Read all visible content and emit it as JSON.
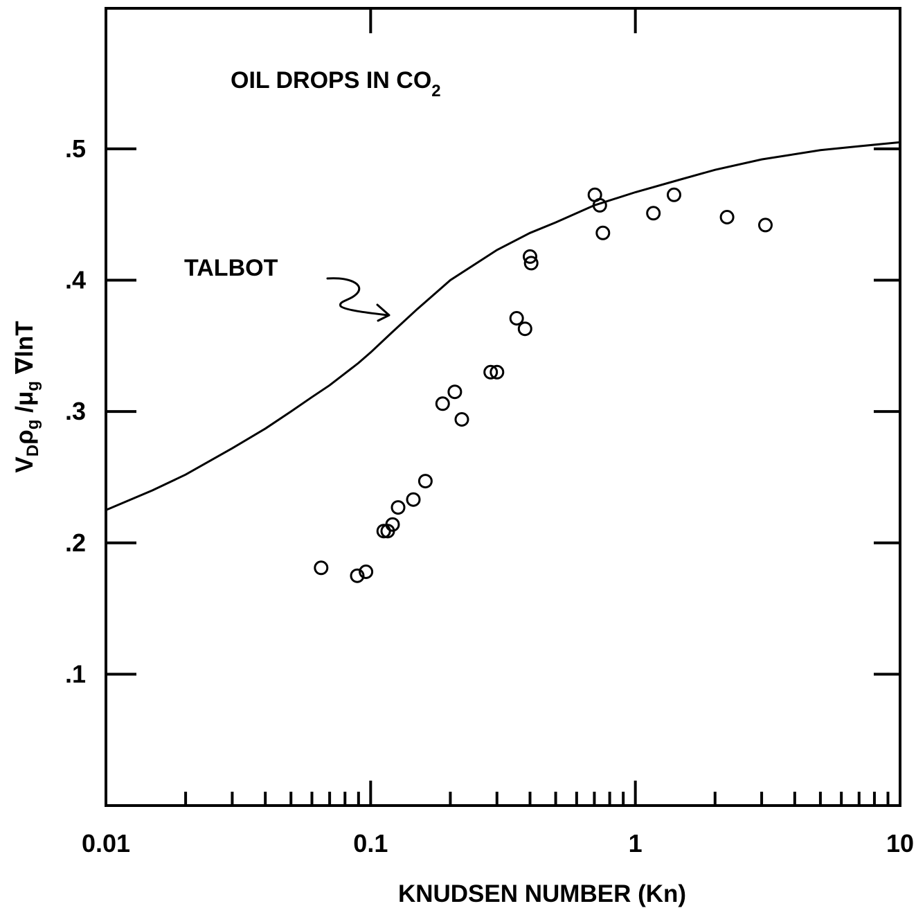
{
  "chart_data": {
    "type": "scatter",
    "title": "",
    "annotations": {
      "main": "OIL DROPS IN CO",
      "main_subscript": "2",
      "curve_label": "TALBOT"
    },
    "xlabel": "KNUDSEN NUMBER (Kn)",
    "ylabel": {
      "v": "V",
      "v_sub": "D",
      "rho": "ρ",
      "rho_sub": "g",
      "slash_mu": " /μ",
      "mu_sub": "g",
      "rest": " ∇lnT"
    },
    "xscale": "log",
    "xlim": [
      0.01,
      10
    ],
    "ylim": [
      0.0,
      0.607
    ],
    "x_ticks": [
      {
        "value": 0.01,
        "label": "0.01"
      },
      {
        "value": 0.1,
        "label": "0.1"
      },
      {
        "value": 1,
        "label": "1"
      },
      {
        "value": 10,
        "label": "10"
      }
    ],
    "y_ticks": [
      {
        "value": 0.1,
        "label": ".1"
      },
      {
        "value": 0.2,
        "label": ".2"
      },
      {
        "value": 0.3,
        "label": ".3"
      },
      {
        "value": 0.4,
        "label": ".4"
      },
      {
        "value": 0.5,
        "label": ".5"
      }
    ],
    "grid": false,
    "legend": "none",
    "series": [
      {
        "kind": "line",
        "x": [
          0.01,
          0.015,
          0.02,
          0.03,
          0.04,
          0.05,
          0.06,
          0.07,
          0.08,
          0.09,
          0.1,
          0.12,
          0.15,
          0.2,
          0.3,
          0.4,
          0.5,
          0.7,
          1.0,
          1.5,
          2.0,
          3.0,
          5.0,
          7.0,
          10.0
        ],
        "y": [
          0.225,
          0.24,
          0.252,
          0.272,
          0.287,
          0.3,
          0.311,
          0.32,
          0.329,
          0.337,
          0.345,
          0.36,
          0.378,
          0.4,
          0.423,
          0.436,
          0.444,
          0.457,
          0.467,
          0.477,
          0.484,
          0.492,
          0.499,
          0.502,
          0.505
        ]
      },
      {
        "kind": "points",
        "marker": "open-circle",
        "points": [
          [
            0.065,
            0.181
          ],
          [
            0.089,
            0.175
          ],
          [
            0.096,
            0.178
          ],
          [
            0.112,
            0.209
          ],
          [
            0.116,
            0.209
          ],
          [
            0.121,
            0.214
          ],
          [
            0.127,
            0.227
          ],
          [
            0.145,
            0.233
          ],
          [
            0.161,
            0.247
          ],
          [
            0.187,
            0.306
          ],
          [
            0.208,
            0.315
          ],
          [
            0.221,
            0.294
          ],
          [
            0.284,
            0.33
          ],
          [
            0.3,
            0.33
          ],
          [
            0.356,
            0.371
          ],
          [
            0.383,
            0.363
          ],
          [
            0.4,
            0.418
          ],
          [
            0.404,
            0.413
          ],
          [
            0.703,
            0.465
          ],
          [
            0.734,
            0.457
          ],
          [
            0.754,
            0.436
          ],
          [
            1.17,
            0.451
          ],
          [
            1.4,
            0.465
          ],
          [
            2.22,
            0.448
          ],
          [
            3.1,
            0.442
          ]
        ]
      }
    ]
  }
}
